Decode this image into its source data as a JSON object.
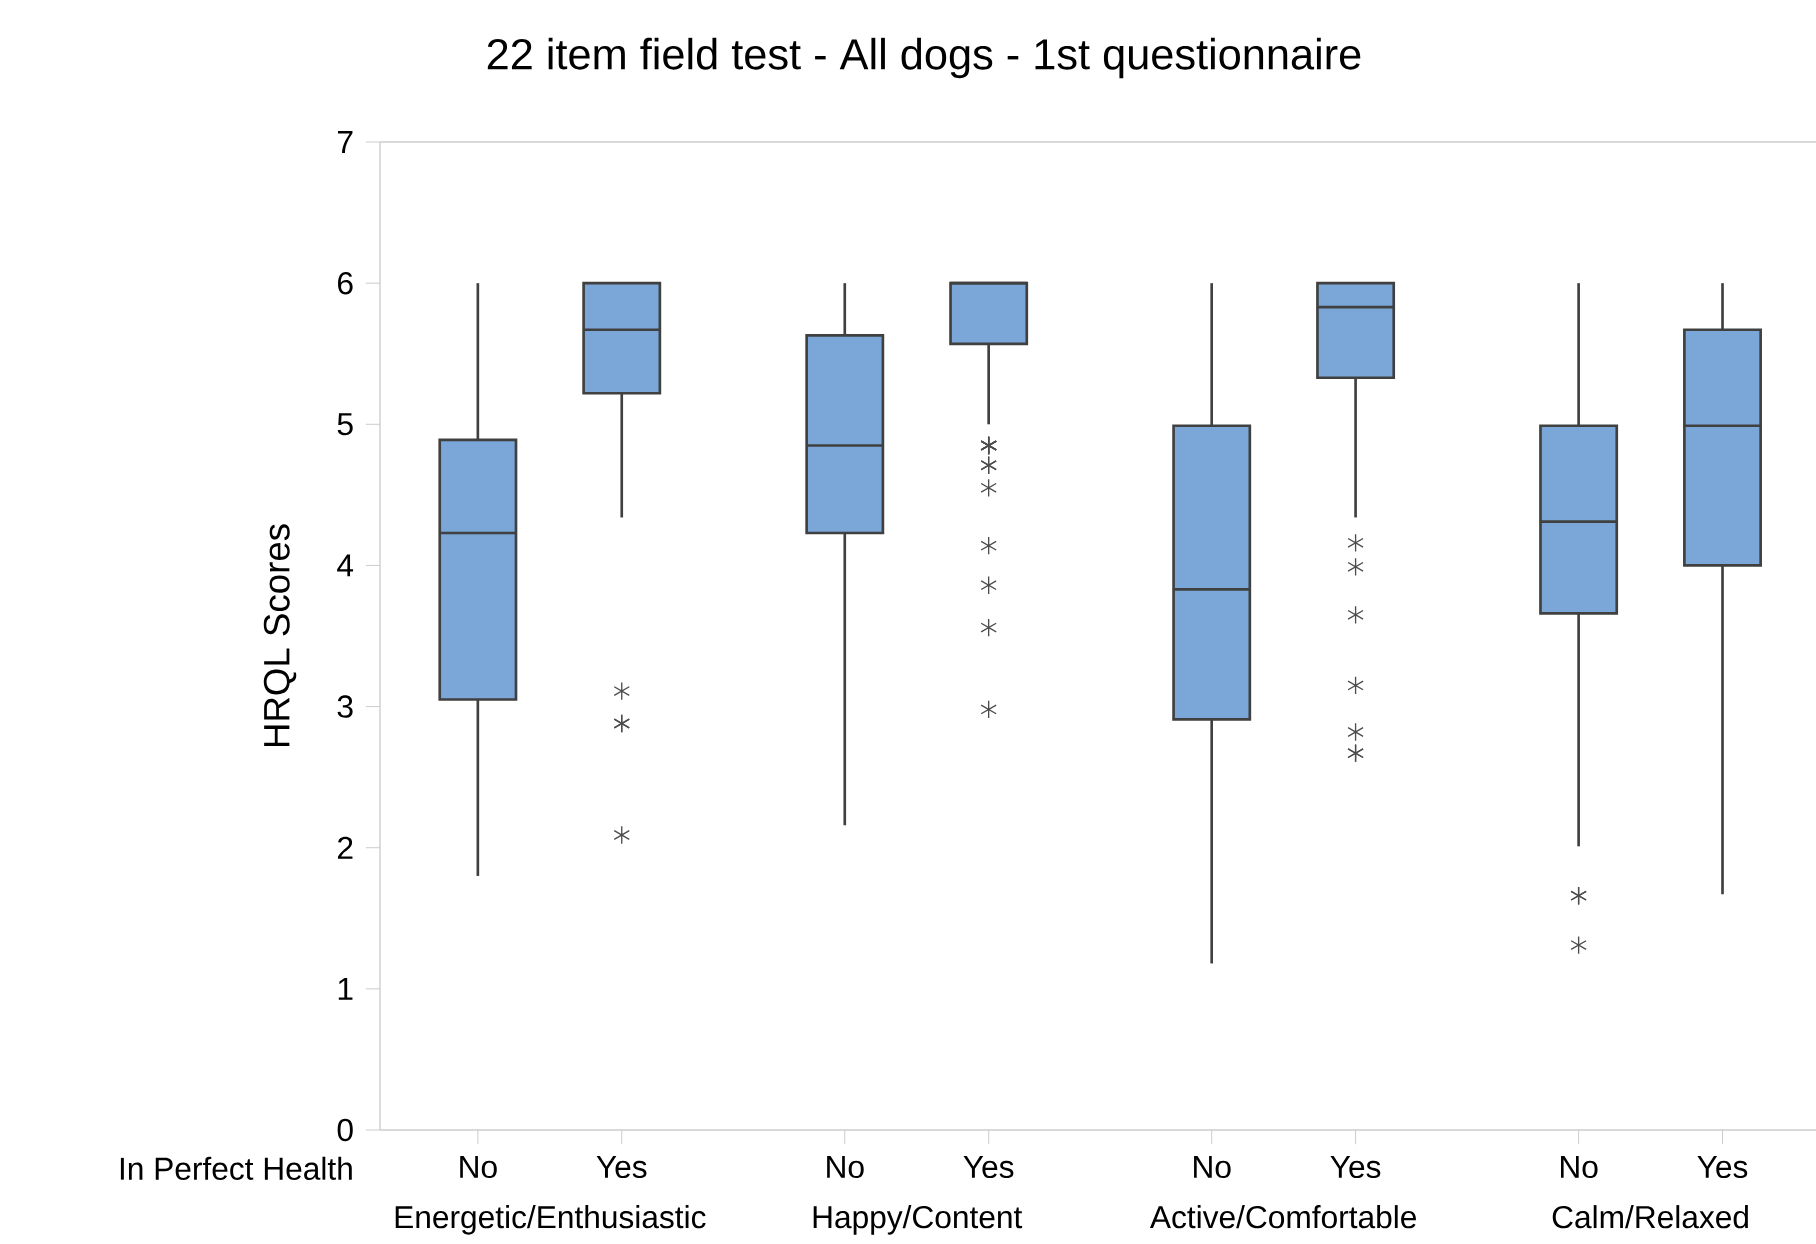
{
  "chart_data": {
    "type": "box",
    "title": "22 item field test - All dogs - 1st questionnaire",
    "ylabel": "HRQL Scores",
    "categories": [
      "No",
      "Yes",
      "No",
      "Yes",
      "No",
      "Yes",
      "No",
      "Yes"
    ],
    "annotations": [
      "In Perfect Health",
      "Energetic/Enthusiastic",
      "Happy/Content",
      "Active/Comfortable",
      "Calm/Relaxed"
    ],
    "color": "#7aa6d8",
    "marker": "star",
    "ylim": [
      0,
      7
    ],
    "yticks": [
      0,
      1,
      2,
      3,
      4,
      5,
      6,
      7
    ],
    "boxes": [
      {
        "low": 1.8,
        "q1": 3.05,
        "median": 4.23,
        "q3": 4.89,
        "high": 6.0
      },
      {
        "low": 4.34,
        "q1": 5.22,
        "median": 5.67,
        "q3": 6.0,
        "high": 6.0,
        "outliers": [
          3.11,
          2.88,
          2.88,
          2.09
        ]
      },
      {
        "low": 2.16,
        "q1": 4.23,
        "median": 4.85,
        "q3": 5.63,
        "high": 6.0
      },
      {
        "low": 5.0,
        "q1": 5.57,
        "median": 6.0,
        "q3": 6.0,
        "high": 6.0,
        "outliers": [
          4.85,
          4.85,
          4.85,
          4.85,
          4.85,
          4.71,
          4.71,
          4.55,
          4.14,
          3.86,
          3.56,
          2.98
        ]
      },
      {
        "low": 1.18,
        "q1": 2.91,
        "median": 3.83,
        "q3": 4.99,
        "high": 6.0
      },
      {
        "low": 4.34,
        "q1": 5.33,
        "median": 5.83,
        "q3": 6.0,
        "high": 6.0,
        "outliers": [
          4.16,
          3.99,
          3.65,
          3.15,
          2.82,
          2.67,
          2.67
        ]
      },
      {
        "low": 2.01,
        "q1": 3.66,
        "median": 4.31,
        "q3": 4.99,
        "high": 6.0,
        "outliers": [
          1.66,
          1.66,
          1.31
        ]
      },
      {
        "low": 1.67,
        "q1": 4.0,
        "median": 4.99,
        "q3": 5.67,
        "high": 6.0
      }
    ]
  }
}
